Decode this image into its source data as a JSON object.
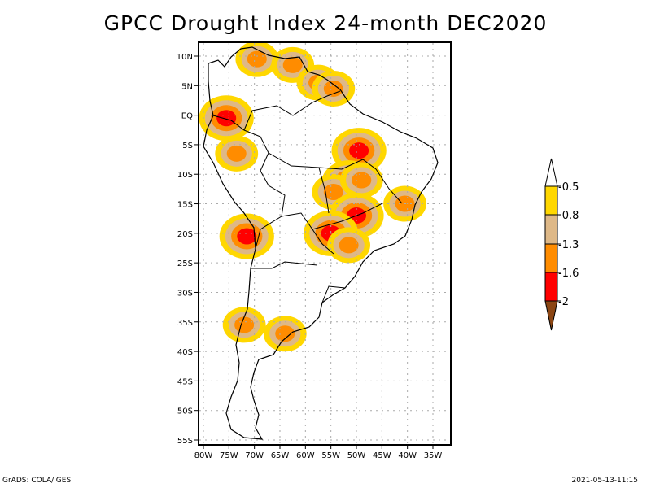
{
  "title": "GPCC Drought Index 24-month DEC2020",
  "footer": {
    "left": "GrADS: COLA/IGES",
    "right": "2021-05-13-11:15"
  },
  "map": {
    "lon_range": [
      -81,
      -31
    ],
    "lat_range": [
      12,
      -56
    ],
    "lon_ticks": [
      {
        "value": -80,
        "label": "80W"
      },
      {
        "value": -75,
        "label": "75W"
      },
      {
        "value": -70,
        "label": "70W"
      },
      {
        "value": -65,
        "label": "65W"
      },
      {
        "value": -60,
        "label": "60W"
      },
      {
        "value": -55,
        "label": "55W"
      },
      {
        "value": -50,
        "label": "50W"
      },
      {
        "value": -45,
        "label": "45W"
      },
      {
        "value": -40,
        "label": "40W"
      },
      {
        "value": -35,
        "label": "35W"
      }
    ],
    "lat_ticks": [
      {
        "value": 10,
        "label": "10N"
      },
      {
        "value": 5,
        "label": "5N"
      },
      {
        "value": 0,
        "label": "EQ"
      },
      {
        "value": -5,
        "label": "5S"
      },
      {
        "value": -10,
        "label": "10S"
      },
      {
        "value": -15,
        "label": "15S"
      },
      {
        "value": -20,
        "label": "20S"
      },
      {
        "value": -25,
        "label": "25S"
      },
      {
        "value": -30,
        "label": "30S"
      },
      {
        "value": -35,
        "label": "35S"
      },
      {
        "value": -40,
        "label": "40S"
      },
      {
        "value": -45,
        "label": "45S"
      },
      {
        "value": -50,
        "label": "50S"
      },
      {
        "value": -55,
        "label": "55S"
      }
    ]
  },
  "colorbar": {
    "levels": [
      "-0.5",
      "-0.8",
      "-1.3",
      "-1.6",
      "-2"
    ],
    "colors": {
      "above": "#ffffff",
      "b1": "#ffd700",
      "b2": "#deb887",
      "b3": "#ff8c00",
      "b4": "#ff0000",
      "below": "#8b4513"
    }
  },
  "drought_regions": [
    {
      "lon": -69.5,
      "lat": 9.5,
      "level": 3
    },
    {
      "lon": -62.5,
      "lat": 8.5,
      "level": 3
    },
    {
      "lon": -57.5,
      "lat": 5.5,
      "level": 3
    },
    {
      "lon": -54.5,
      "lat": 4.5,
      "level": 3
    },
    {
      "lon": -75.5,
      "lat": -0.5,
      "level": 4
    },
    {
      "lon": -73.5,
      "lat": -6.5,
      "level": 3
    },
    {
      "lon": -49.5,
      "lat": -6,
      "level": 4
    },
    {
      "lon": -51.5,
      "lat": -11.5,
      "level": 4
    },
    {
      "lon": -54.5,
      "lat": -13,
      "level": 3
    },
    {
      "lon": -49,
      "lat": -11,
      "level": 3
    },
    {
      "lon": -50,
      "lat": -17,
      "level": 4
    },
    {
      "lon": -55,
      "lat": -20,
      "level": 4
    },
    {
      "lon": -51.5,
      "lat": -22,
      "level": 3
    },
    {
      "lon": -40.5,
      "lat": -15,
      "level": 3
    },
    {
      "lon": -71.5,
      "lat": -20.5,
      "level": 4
    },
    {
      "lon": -72,
      "lat": -35.5,
      "level": 3
    },
    {
      "lon": -64,
      "lat": -37,
      "level": 3
    }
  ]
}
